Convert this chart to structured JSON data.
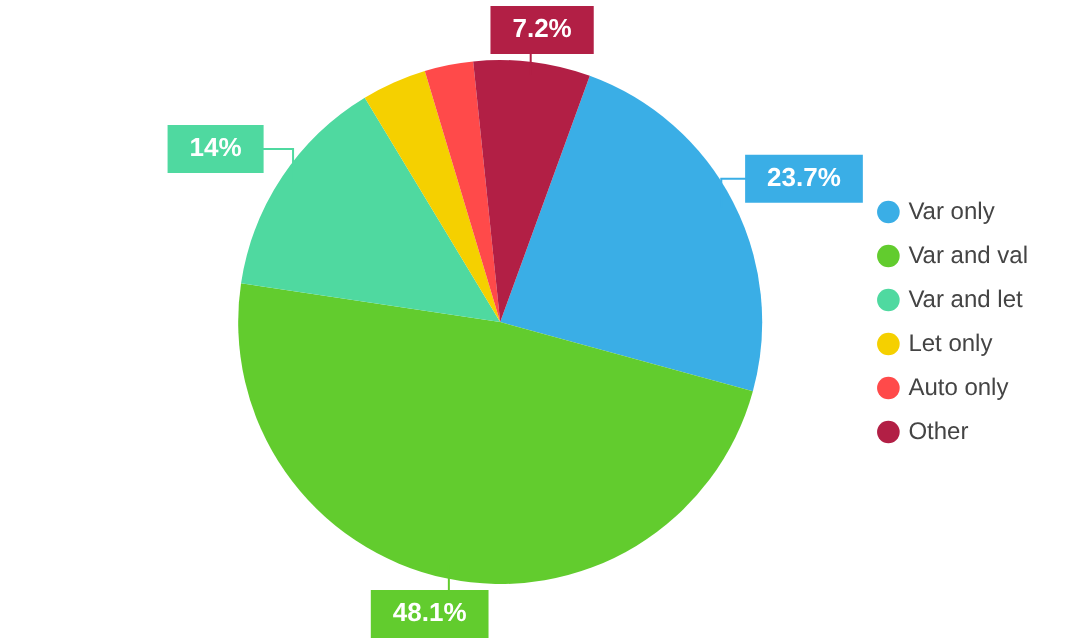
{
  "chart_data": {
    "type": "pie",
    "categories": [
      "Var only",
      "Var and val",
      "Var and let",
      "Let only",
      "Auto only",
      "Other"
    ],
    "values": [
      23.7,
      48.1,
      14,
      4,
      3,
      7.2
    ],
    "colors": [
      "#3aaee6",
      "#62cc2e",
      "#4fd9a0",
      "#f5d000",
      "#ff4a4a",
      "#b21f45"
    ],
    "value_labels": [
      "23.7%",
      "48.1%",
      "14%",
      null,
      null,
      "7.2%"
    ],
    "legend": "right"
  }
}
